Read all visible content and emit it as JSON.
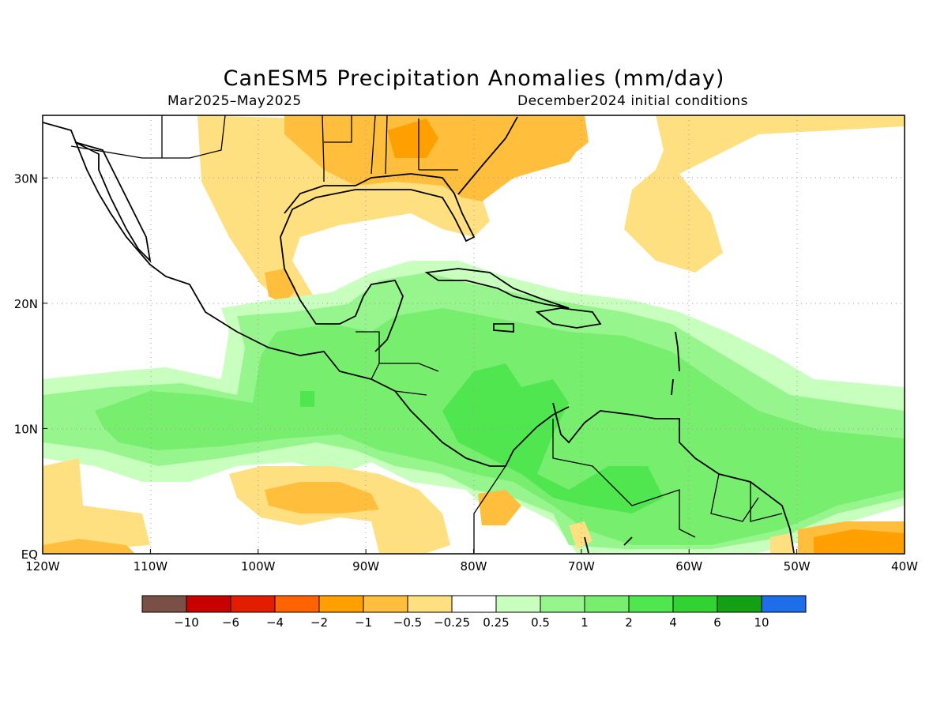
{
  "title": "CanESM5 Precipitation Anomalies (mm/day)",
  "subtitle_left": "Mar2025–May2025",
  "subtitle_right": "December2024 initial conditions",
  "map": {
    "lon_range": [
      -120,
      -40
    ],
    "lat_range": [
      0,
      35
    ],
    "x_ticks": [
      "120W",
      "110W",
      "100W",
      "90W",
      "80W",
      "70W",
      "60W",
      "50W",
      "40W"
    ],
    "y_ticks": [
      "EQ",
      "10N",
      "20N",
      "30N"
    ],
    "gridlines": true
  },
  "colorbar": {
    "colors": [
      "#7a4f45",
      "#c80000",
      "#e41c00",
      "#ff6400",
      "#ffa000",
      "#ffbe3c",
      "#ffe080",
      "#ffffff",
      "#c8ffbe",
      "#96f58c",
      "#78ee6e",
      "#50e650",
      "#32d232",
      "#14a014",
      "#1e6eeb"
    ],
    "labels": [
      "−10",
      "−6",
      "−4",
      "−2",
      "−1",
      "−0.5",
      "−0.25",
      "0.25",
      "0.5",
      "1",
      "2",
      "4",
      "6",
      "10"
    ]
  }
}
